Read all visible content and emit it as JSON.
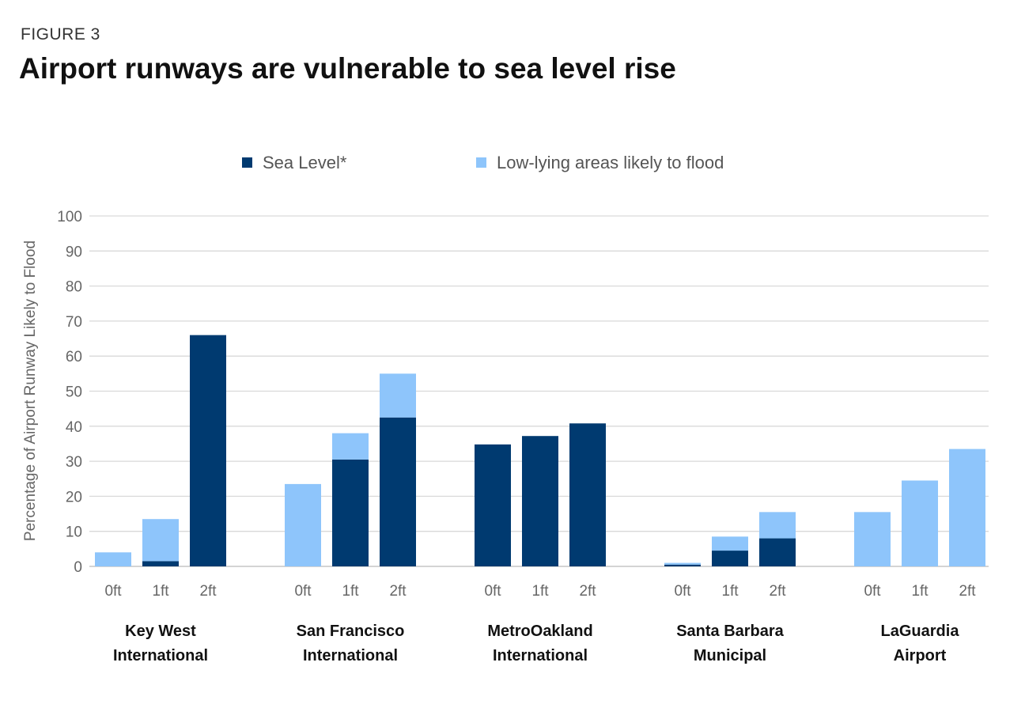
{
  "figure_label": "FIGURE 3",
  "chart_data": {
    "type": "bar",
    "stacked": true,
    "title": "Airport runways are vulnerable to sea level rise",
    "ylabel": "Percentage of Airport Runway Likely to Flood",
    "ylim": [
      0,
      100
    ],
    "yticks": [
      0,
      10,
      20,
      30,
      40,
      50,
      60,
      70,
      80,
      90,
      100
    ],
    "grid": true,
    "legend_position": "top",
    "series": [
      {
        "name": "Sea Level*",
        "color": "#003a70"
      },
      {
        "name": "Low-lying areas likely to flood",
        "color": "#8ec5fb"
      }
    ],
    "groups": [
      {
        "name": "Key West International",
        "lines": [
          "Key West",
          "International"
        ],
        "bars": [
          {
            "label": "0ft",
            "sea_level": 0,
            "low_lying": 4
          },
          {
            "label": "1ft",
            "sea_level": 1.5,
            "low_lying": 12
          },
          {
            "label": "2ft",
            "sea_level": 66,
            "low_lying": 0
          }
        ]
      },
      {
        "name": "San Francisco International",
        "lines": [
          "San Francisco",
          "International"
        ],
        "bars": [
          {
            "label": "0ft",
            "sea_level": 0,
            "low_lying": 23.5
          },
          {
            "label": "1ft",
            "sea_level": 30.5,
            "low_lying": 7.5
          },
          {
            "label": "2ft",
            "sea_level": 42.5,
            "low_lying": 12.5
          }
        ]
      },
      {
        "name": "MetroOakland International",
        "lines": [
          "MetroOakland",
          "International"
        ],
        "bars": [
          {
            "label": "0ft",
            "sea_level": 34.8,
            "low_lying": 0
          },
          {
            "label": "1ft",
            "sea_level": 37.2,
            "low_lying": 0
          },
          {
            "label": "2ft",
            "sea_level": 40.8,
            "low_lying": 0
          }
        ]
      },
      {
        "name": "Santa Barbara Municipal",
        "lines": [
          "Santa Barbara",
          "Municipal"
        ],
        "bars": [
          {
            "label": "0ft",
            "sea_level": 0.5,
            "low_lying": 0.5
          },
          {
            "label": "1ft",
            "sea_level": 4.5,
            "low_lying": 4
          },
          {
            "label": "2ft",
            "sea_level": 8,
            "low_lying": 7.5
          }
        ]
      },
      {
        "name": "LaGuardia Airport",
        "lines": [
          "LaGuardia",
          "Airport"
        ],
        "bars": [
          {
            "label": "0ft",
            "sea_level": 0,
            "low_lying": 15.5
          },
          {
            "label": "1ft",
            "sea_level": 0,
            "low_lying": 24.5
          },
          {
            "label": "2ft",
            "sea_level": 0,
            "low_lying": 33.5
          }
        ]
      }
    ]
  }
}
